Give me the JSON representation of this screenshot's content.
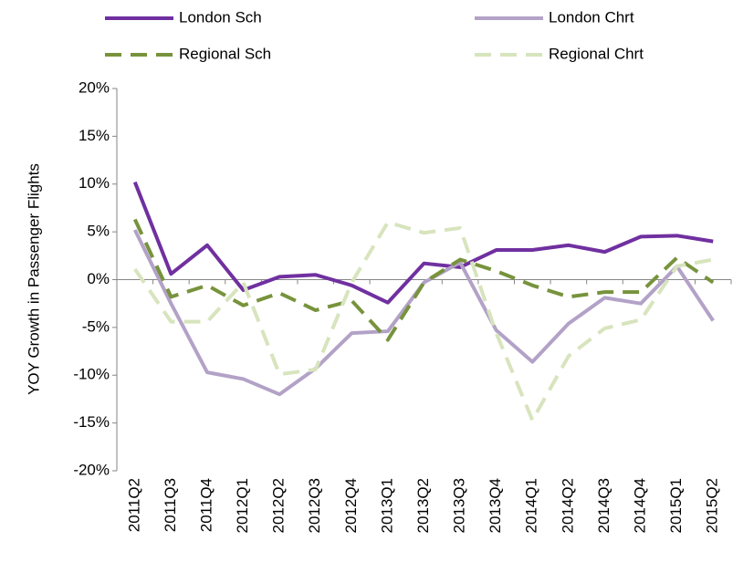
{
  "chart_data": {
    "type": "line",
    "y_label": "YOY Growth in Passenger Flights",
    "categories": [
      "2011Q2",
      "2011Q3",
      "2011Q4",
      "2012Q1",
      "2012Q2",
      "2012Q3",
      "2012Q4",
      "2013Q1",
      "2013Q2",
      "2013Q3",
      "2013Q4",
      "2014Q1",
      "2014Q2",
      "2014Q3",
      "2014Q4",
      "2015Q1",
      "2015Q2"
    ],
    "series": [
      {
        "name": "London Sch",
        "color": "#7030a0",
        "dash": "solid",
        "values": [
          10.2,
          0.6,
          3.6,
          -1.1,
          0.3,
          0.5,
          -0.6,
          -2.4,
          1.7,
          1.3,
          3.1,
          3.1,
          3.6,
          2.9,
          4.5,
          4.6,
          4.0
        ]
      },
      {
        "name": "London Chrt",
        "color": "#b3a2c7",
        "dash": "solid",
        "values": [
          5.2,
          -2.5,
          -9.7,
          -10.4,
          -12.0,
          -9.3,
          -5.6,
          -5.4,
          -0.3,
          1.8,
          -5.3,
          -8.6,
          -4.6,
          -1.9,
          -2.5,
          1.4,
          -4.3
        ]
      },
      {
        "name": "Regional Sch",
        "color": "#77933c",
        "dash": "dashed",
        "values": [
          6.3,
          -1.8,
          -0.6,
          -2.7,
          -1.4,
          -3.2,
          -2.2,
          -6.3,
          -0.3,
          2.1,
          0.9,
          -0.6,
          -1.8,
          -1.3,
          -1.3,
          2.3,
          -0.3
        ]
      },
      {
        "name": "Regional Chrt",
        "color": "#d7e4bd",
        "dash": "dashed",
        "values": [
          1.1,
          -4.4,
          -4.4,
          -0.3,
          -9.9,
          -9.4,
          -0.3,
          6.0,
          4.9,
          5.4,
          -5.6,
          -14.7,
          -8.0,
          -5.1,
          -4.2,
          1.4,
          2.1
        ]
      }
    ],
    "ylim": [
      -20,
      20
    ],
    "yticks": [
      {
        "value": -20,
        "label": "-20%"
      },
      {
        "value": -15,
        "label": "-15%"
      },
      {
        "value": -10,
        "label": "-10%"
      },
      {
        "value": -5,
        "label": "-5%"
      },
      {
        "value": 0,
        "label": "0%"
      },
      {
        "value": 5,
        "label": "5%"
      },
      {
        "value": 10,
        "label": "10%"
      },
      {
        "value": 15,
        "label": "15%"
      },
      {
        "value": 20,
        "label": "20%"
      }
    ],
    "grid": false
  }
}
